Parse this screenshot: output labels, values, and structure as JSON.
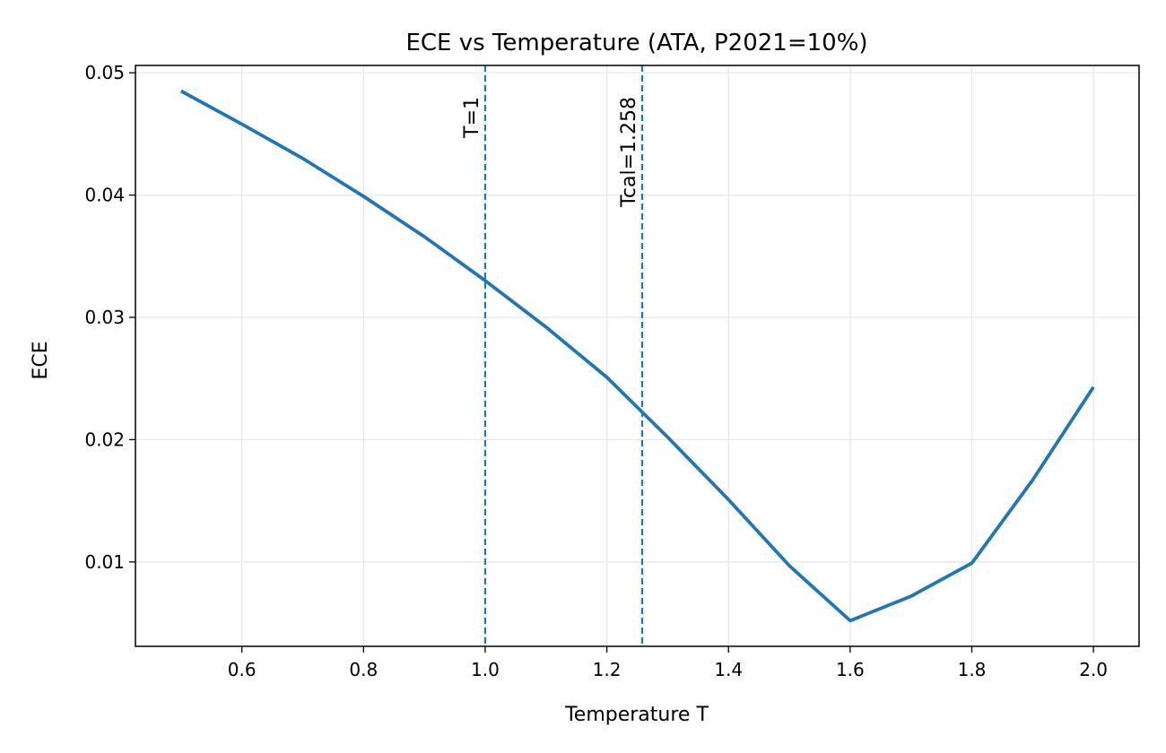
{
  "chart_data": {
    "type": "line",
    "title": "ECE vs Temperature (ATA, P2021=10%)",
    "xlabel": "Temperature T",
    "ylabel": "ECE",
    "xlim": [
      0.425,
      2.075
    ],
    "ylim": [
      0.0031,
      0.0506
    ],
    "xticks": [
      0.6,
      0.8,
      1.0,
      1.2,
      1.4,
      1.6,
      1.8,
      2.0
    ],
    "xtick_labels": [
      "0.6",
      "0.8",
      "1.0",
      "1.2",
      "1.4",
      "1.6",
      "1.8",
      "2.0"
    ],
    "yticks": [
      0.01,
      0.02,
      0.03,
      0.04,
      0.05
    ],
    "ytick_labels": [
      "0.01",
      "0.02",
      "0.03",
      "0.04",
      "0.05"
    ],
    "grid": true,
    "series": [
      {
        "color": "#1f77b4",
        "x": [
          0.5,
          0.6,
          0.7,
          0.8,
          0.9,
          1.0,
          1.1,
          1.2,
          1.3,
          1.4,
          1.5,
          1.6,
          1.7,
          1.8,
          1.9,
          2.0
        ],
        "y": [
          0.0485,
          0.0458,
          0.043,
          0.0399,
          0.0366,
          0.033,
          0.0292,
          0.0251,
          0.0202,
          0.0151,
          0.0097,
          0.0052,
          0.0072,
          0.0099,
          0.0167,
          0.0243
        ]
      }
    ],
    "vlines": [
      {
        "x": 1.0,
        "label": "T=1",
        "color": "#1f77b4",
        "style": "dashed"
      },
      {
        "x": 1.258,
        "label": "Tcal=1.258",
        "color": "#1f77b4",
        "style": "dashed"
      }
    ]
  }
}
